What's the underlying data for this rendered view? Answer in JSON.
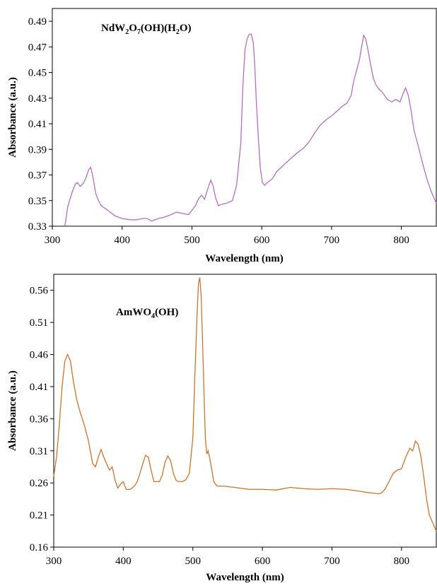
{
  "chart_data": [
    {
      "type": "line",
      "title": "NdW",
      "title_parts": [
        "NdW",
        "2",
        "O",
        "7",
        "(OH)(H",
        "2",
        "O)"
      ],
      "xlabel": "Wavelength (nm)",
      "ylabel": "Absorbance (a.u.)",
      "xlim": [
        300,
        850
      ],
      "ylim": [
        0.33,
        0.5
      ],
      "xticks": [
        300,
        400,
        500,
        600,
        700,
        800
      ],
      "yticks": [
        0.33,
        0.35,
        0.37,
        0.39,
        0.41,
        0.43,
        0.45,
        0.47,
        0.49
      ],
      "xtick_labels": [
        "300",
        "400",
        "500",
        "600",
        "700",
        "800"
      ],
      "ytick_labels": [
        "0.33",
        "0.35",
        "0.37",
        "0.39",
        "0.41",
        "0.43",
        "0.45",
        "0.47",
        "0.49"
      ],
      "grid": false,
      "line_color": "#b16fbf",
      "series": [
        {
          "x": [
            318,
            322,
            328,
            333,
            336,
            340,
            345,
            349,
            352,
            355,
            358,
            362,
            366,
            370,
            378,
            390,
            400,
            412,
            420,
            430,
            436,
            442,
            452,
            460,
            470,
            478,
            486,
            495,
            505,
            510,
            514,
            518,
            522,
            527,
            530,
            534,
            538,
            542,
            550,
            558,
            564,
            570,
            573,
            576,
            579,
            582,
            585,
            588,
            590,
            592,
            595,
            598,
            601,
            604,
            608,
            615,
            622,
            632,
            640,
            650,
            660,
            668,
            676,
            684,
            692,
            702,
            710,
            716,
            722,
            728,
            732,
            736,
            740,
            743,
            746,
            749,
            752,
            756,
            760,
            764,
            768,
            772,
            776,
            780,
            786,
            792,
            798,
            802,
            806,
            810,
            814,
            818,
            824,
            830,
            836,
            842,
            850
          ],
          "y": [
            0.33,
            0.345,
            0.356,
            0.363,
            0.364,
            0.361,
            0.364,
            0.369,
            0.374,
            0.376,
            0.369,
            0.356,
            0.35,
            0.346,
            0.343,
            0.338,
            0.336,
            0.335,
            0.335,
            0.336,
            0.336,
            0.334,
            0.336,
            0.337,
            0.339,
            0.341,
            0.34,
            0.339,
            0.346,
            0.352,
            0.354,
            0.351,
            0.358,
            0.366,
            0.362,
            0.352,
            0.346,
            0.347,
            0.348,
            0.35,
            0.362,
            0.395,
            0.44,
            0.468,
            0.476,
            0.48,
            0.48,
            0.473,
            0.455,
            0.43,
            0.4,
            0.375,
            0.364,
            0.362,
            0.364,
            0.367,
            0.373,
            0.378,
            0.382,
            0.387,
            0.391,
            0.396,
            0.403,
            0.409,
            0.413,
            0.417,
            0.421,
            0.424,
            0.426,
            0.432,
            0.444,
            0.452,
            0.46,
            0.47,
            0.479,
            0.476,
            0.468,
            0.456,
            0.445,
            0.44,
            0.437,
            0.435,
            0.432,
            0.429,
            0.427,
            0.429,
            0.427,
            0.433,
            0.438,
            0.432,
            0.42,
            0.405,
            0.393,
            0.38,
            0.368,
            0.358,
            0.348
          ]
        }
      ]
    },
    {
      "type": "line",
      "title": "AmWO",
      "title_parts": [
        "AmWO",
        "4",
        "(OH)"
      ],
      "xlabel": "Wavelength (nm)",
      "ylabel": "Absorbance (a.u.)",
      "xlim": [
        300,
        850
      ],
      "ylim": [
        0.16,
        0.585
      ],
      "xticks": [
        300,
        400,
        500,
        600,
        700,
        800
      ],
      "yticks": [
        0.16,
        0.21,
        0.26,
        0.31,
        0.36,
        0.41,
        0.46,
        0.51,
        0.56
      ],
      "xtick_labels": [
        "300",
        "400",
        "500",
        "600",
        "700",
        "800"
      ],
      "ytick_labels": [
        "0.16",
        "0.21",
        "0.26",
        "0.31",
        "0.36",
        "0.41",
        "0.46",
        "0.51",
        "0.56"
      ],
      "grid": false,
      "line_color": "#c8742f",
      "series": [
        {
          "x": [
            300,
            304,
            308,
            312,
            316,
            320,
            324,
            328,
            333,
            338,
            344,
            350,
            356,
            360,
            364,
            368,
            372,
            376,
            380,
            384,
            388,
            392,
            396,
            400,
            404,
            410,
            416,
            420,
            424,
            428,
            432,
            436,
            440,
            444,
            448,
            452,
            456,
            460,
            464,
            468,
            472,
            476,
            480,
            485,
            490,
            495,
            500,
            503,
            506,
            508,
            510,
            512,
            514,
            516,
            518,
            520,
            522,
            524,
            527,
            530,
            535,
            545,
            560,
            580,
            600,
            620,
            640,
            660,
            680,
            700,
            720,
            740,
            752,
            760,
            768,
            772,
            776,
            782,
            788,
            794,
            800,
            806,
            812,
            816,
            820,
            824,
            828,
            832,
            836,
            840,
            846,
            850
          ],
          "y": [
            0.27,
            0.3,
            0.35,
            0.41,
            0.45,
            0.46,
            0.45,
            0.42,
            0.39,
            0.37,
            0.35,
            0.325,
            0.29,
            0.285,
            0.3,
            0.312,
            0.3,
            0.29,
            0.28,
            0.285,
            0.265,
            0.252,
            0.258,
            0.262,
            0.25,
            0.25,
            0.255,
            0.262,
            0.275,
            0.29,
            0.303,
            0.3,
            0.28,
            0.262,
            0.262,
            0.262,
            0.272,
            0.292,
            0.302,
            0.295,
            0.275,
            0.264,
            0.262,
            0.262,
            0.265,
            0.275,
            0.33,
            0.43,
            0.52,
            0.57,
            0.58,
            0.55,
            0.48,
            0.4,
            0.33,
            0.305,
            0.31,
            0.3,
            0.282,
            0.262,
            0.255,
            0.255,
            0.253,
            0.25,
            0.25,
            0.249,
            0.253,
            0.251,
            0.25,
            0.251,
            0.25,
            0.247,
            0.245,
            0.244,
            0.243,
            0.245,
            0.25,
            0.262,
            0.275,
            0.28,
            0.282,
            0.3,
            0.314,
            0.31,
            0.325,
            0.32,
            0.3,
            0.27,
            0.235,
            0.21,
            0.195,
            0.185
          ]
        }
      ]
    }
  ]
}
